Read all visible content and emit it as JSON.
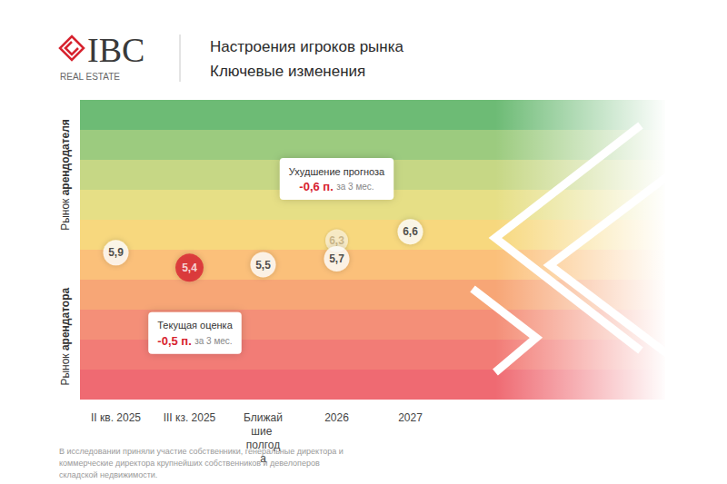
{
  "chart_data": {
    "type": "scatter",
    "title": "Настроения игроков рынка",
    "subtitle": "Ключевые изменения",
    "logo": {
      "name": "IBC",
      "tagline": "REAL ESTATE"
    },
    "y_side_labels": {
      "top": "Рынок арендодателя",
      "bottom": "Рынок арендатора"
    },
    "categories": [
      "II кв. 2025",
      "III кз. 2025",
      "Ближайшие полгода",
      "2026",
      "2027"
    ],
    "series": [
      {
        "values": [
          5.9,
          5.4,
          5.5,
          5.7,
          6.6
        ],
        "value_labels": [
          "5,9",
          "5,4",
          "5,5",
          "5,7",
          "6,6"
        ],
        "colors": [
          "#ffffff",
          "#d7232f",
          "#ffffff",
          "#ffffff",
          "#ffffff"
        ]
      },
      {
        "values": [
          null,
          null,
          null,
          6.3,
          null
        ],
        "value_labels": [
          null,
          null,
          null,
          "6,3",
          null
        ],
        "color": "#fbf1d6"
      }
    ],
    "ylim": [
      1,
      11
    ],
    "yticks": [
      1,
      2,
      3,
      4,
      5,
      6,
      7,
      8,
      9,
      10,
      11
    ],
    "grid": false,
    "tick_labels": "x",
    "data_labels": true,
    "marker": "circle",
    "annotations": [
      {
        "category": "2026",
        "title": "Ухудшение прогноза",
        "value": "-0,6 п.",
        "note": "за 3 мес."
      },
      {
        "category": "III кз. 2025",
        "title": "Текущая оценка",
        "value": "-0,5 п.",
        "note": "за 3 мес."
      }
    ],
    "footnote": "В исследовании приняли участие собственники, генеральные директора и коммерческие директора крупнейших собственников и девелоперов складской недвижимости."
  }
}
